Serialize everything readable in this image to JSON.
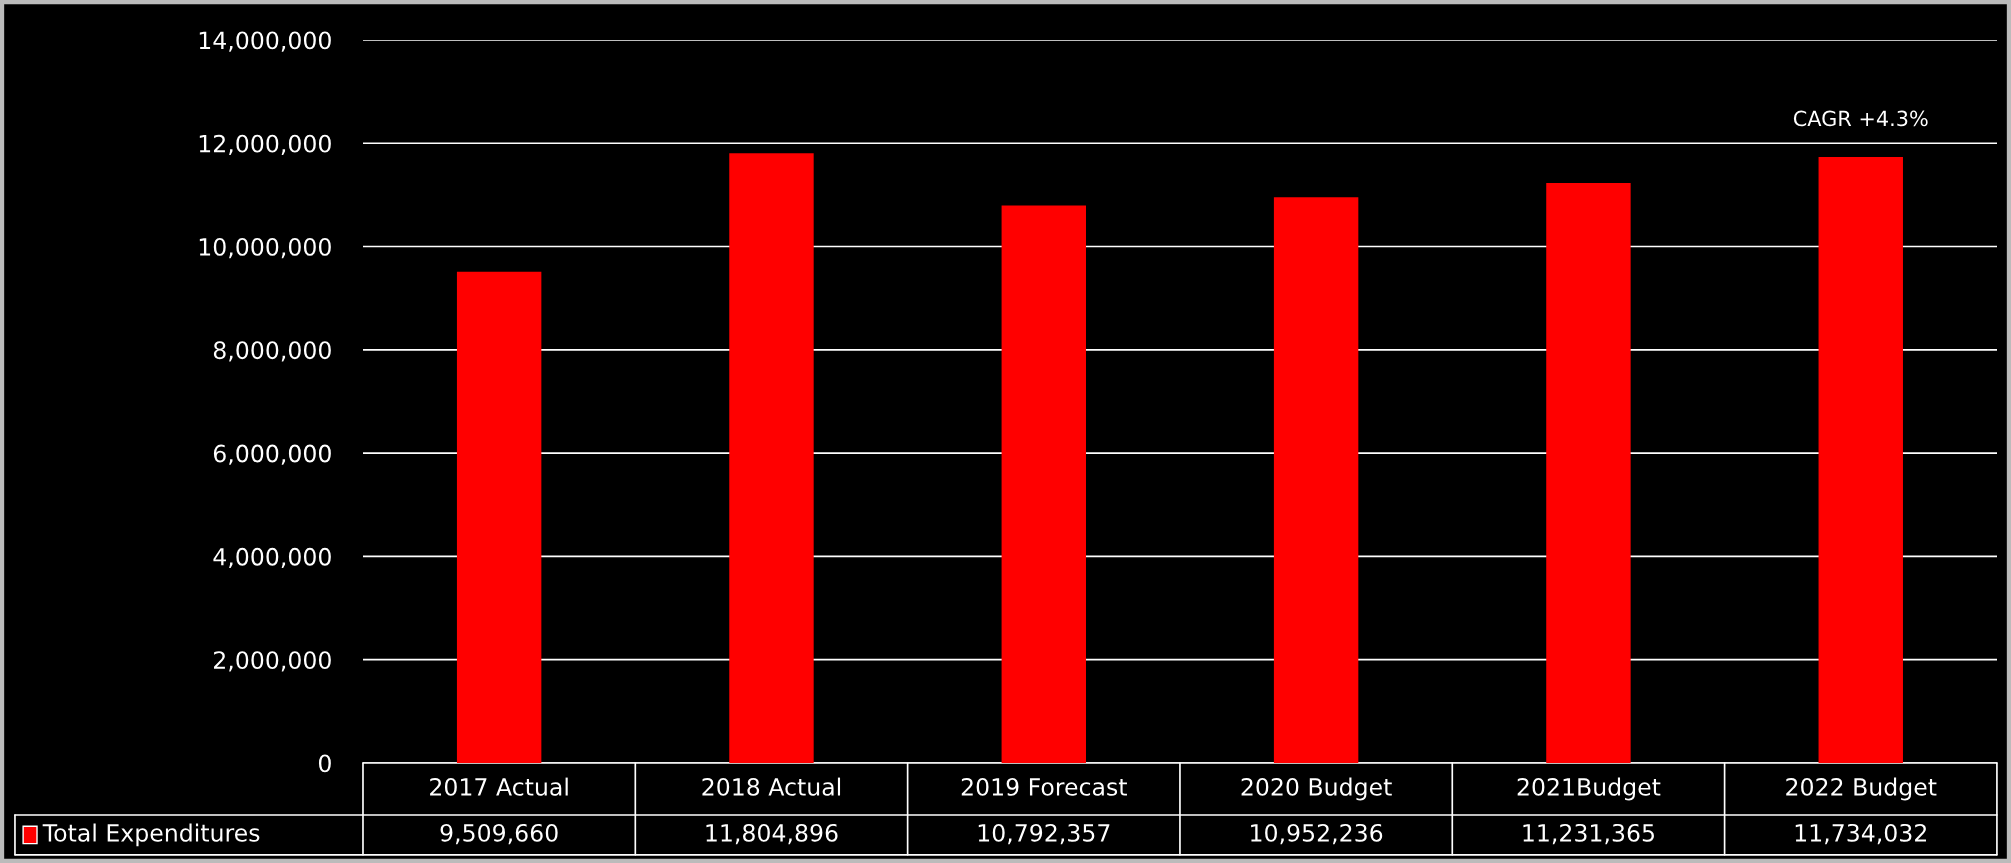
{
  "chart_data": {
    "type": "bar",
    "categories": [
      "2017 Actual",
      "2018 Actual",
      "2019 Forecast",
      "2020 Budget",
      "2021Budget",
      "2022 Budget"
    ],
    "series": [
      {
        "name": "Total Expenditures",
        "color": "#ff0000",
        "values": [
          9509660,
          11804896,
          10792357,
          10952236,
          11231365,
          11734032
        ],
        "value_labels": [
          "9,509,660",
          "11,804,896",
          "10,792,357",
          "10,952,236",
          "11,231,365",
          "11,734,032"
        ]
      }
    ],
    "ylim": [
      0,
      14000000
    ],
    "yticks": [
      0,
      {
        "value": 2000000,
        "label": "2,000,000"
      },
      {
        "value": 4000000,
        "label": "4,000,000"
      },
      {
        "value": 6000000,
        "label": "6,000,000"
      },
      {
        "value": 8000000,
        "label": "8,000,000"
      },
      {
        "value": 10000000,
        "label": "10,000,000"
      },
      {
        "value": 12000000,
        "label": "12,000,000"
      },
      {
        "value": 14000000,
        "label": "14,000,000"
      }
    ],
    "grid": "y",
    "legend": "bottom",
    "annotations": [
      "CAGR +4.3%"
    ]
  }
}
